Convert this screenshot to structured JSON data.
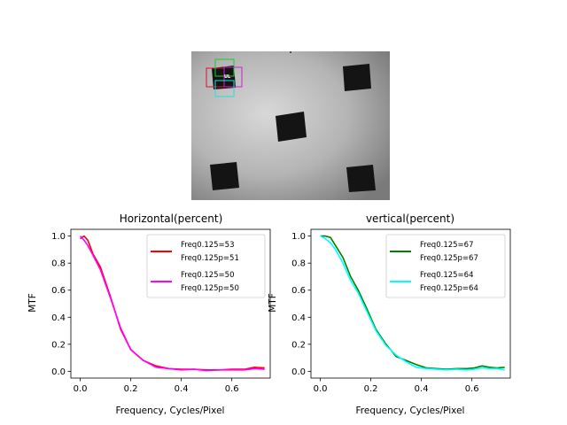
{
  "image": {
    "roi_label": "UL",
    "roi_colors": {
      "red": "#e01030",
      "green": "#10d030",
      "magenta": "#d020d0",
      "cyan": "#20e0e0"
    }
  },
  "chart_data": [
    {
      "type": "line",
      "title": "Horizontal(percent)",
      "xlabel": "Frequency, Cycles/Pixel",
      "ylabel": "MTF",
      "xlim": [
        -0.037,
        0.752
      ],
      "ylim": [
        -0.05,
        1.05
      ],
      "xticks": [
        0.0,
        0.2,
        0.4,
        0.6
      ],
      "xtick_labels": [
        "0.0",
        "0.2",
        "0.4",
        "0.6"
      ],
      "yticks": [
        0.0,
        0.2,
        0.4,
        0.6,
        0.8,
        1.0
      ],
      "ytick_labels": [
        "0.0",
        "0.2",
        "0.4",
        "0.6",
        "0.8",
        "1.0"
      ],
      "grid": false,
      "legend_position": "top-right",
      "series": [
        {
          "legend_lines": [
            "Freq0.125=53",
            "Freq0.125p=51"
          ],
          "color": "#ff0000",
          "x": [
            0.0,
            0.015,
            0.03,
            0.05,
            0.08,
            0.12,
            0.16,
            0.2,
            0.25,
            0.3,
            0.35,
            0.4,
            0.45,
            0.5,
            0.55,
            0.6,
            0.65,
            0.69,
            0.73
          ],
          "y": [
            0.98,
            1.0,
            0.97,
            0.87,
            0.77,
            0.55,
            0.31,
            0.16,
            0.08,
            0.04,
            0.02,
            0.015,
            0.015,
            0.01,
            0.01,
            0.015,
            0.015,
            0.03,
            0.025
          ]
        },
        {
          "legend_lines": [
            "Freq0.125=50",
            "Freq0.125p=50"
          ],
          "color": "#ff00ff",
          "x": [
            0.0,
            0.015,
            0.03,
            0.05,
            0.08,
            0.12,
            0.16,
            0.2,
            0.25,
            0.3,
            0.35,
            0.4,
            0.45,
            0.5,
            0.55,
            0.6,
            0.65,
            0.69,
            0.73
          ],
          "y": [
            1.0,
            0.97,
            0.93,
            0.86,
            0.75,
            0.54,
            0.32,
            0.16,
            0.08,
            0.03,
            0.02,
            0.01,
            0.015,
            0.005,
            0.01,
            0.01,
            0.01,
            0.02,
            0.015
          ]
        }
      ]
    },
    {
      "type": "line",
      "title": "vertical(percent)",
      "xlabel": "Frequency, Cycles/Pixel",
      "ylabel": "MTF",
      "xlim": [
        -0.037,
        0.752
      ],
      "ylim": [
        -0.05,
        1.05
      ],
      "xticks": [
        0.0,
        0.2,
        0.4,
        0.6
      ],
      "xtick_labels": [
        "0.0",
        "0.2",
        "0.4",
        "0.6"
      ],
      "yticks": [
        0.0,
        0.2,
        0.4,
        0.6,
        0.8,
        1.0
      ],
      "ytick_labels": [
        "0.0",
        "0.2",
        "0.4",
        "0.6",
        "0.8",
        "1.0"
      ],
      "grid": false,
      "legend_position": "top-right",
      "series": [
        {
          "legend_lines": [
            "Freq0.125=67",
            "Freq0.125p=67"
          ],
          "color": "#008000",
          "x": [
            0.0,
            0.02,
            0.04,
            0.06,
            0.09,
            0.12,
            0.15,
            0.18,
            0.22,
            0.26,
            0.3,
            0.34,
            0.38,
            0.42,
            0.46,
            0.5,
            0.54,
            0.58,
            0.61,
            0.64,
            0.67,
            0.7,
            0.73
          ],
          "y": [
            1.0,
            1.0,
            0.99,
            0.93,
            0.84,
            0.7,
            0.6,
            0.48,
            0.31,
            0.2,
            0.11,
            0.08,
            0.05,
            0.025,
            0.02,
            0.015,
            0.02,
            0.02,
            0.025,
            0.04,
            0.03,
            0.025,
            0.03
          ]
        },
        {
          "legend_lines": [
            "Freq0.125=64",
            "Freq0.125p=64"
          ],
          "color": "#00ffff",
          "x": [
            0.0,
            0.02,
            0.04,
            0.06,
            0.09,
            0.12,
            0.15,
            0.18,
            0.22,
            0.26,
            0.3,
            0.34,
            0.38,
            0.42,
            0.46,
            0.5,
            0.54,
            0.58,
            0.61,
            0.64,
            0.67,
            0.7,
            0.73
          ],
          "y": [
            1.0,
            0.98,
            0.95,
            0.9,
            0.8,
            0.67,
            0.58,
            0.46,
            0.3,
            0.19,
            0.12,
            0.07,
            0.03,
            0.02,
            0.015,
            0.01,
            0.015,
            0.01,
            0.015,
            0.025,
            0.02,
            0.02,
            0.01
          ]
        }
      ]
    }
  ]
}
